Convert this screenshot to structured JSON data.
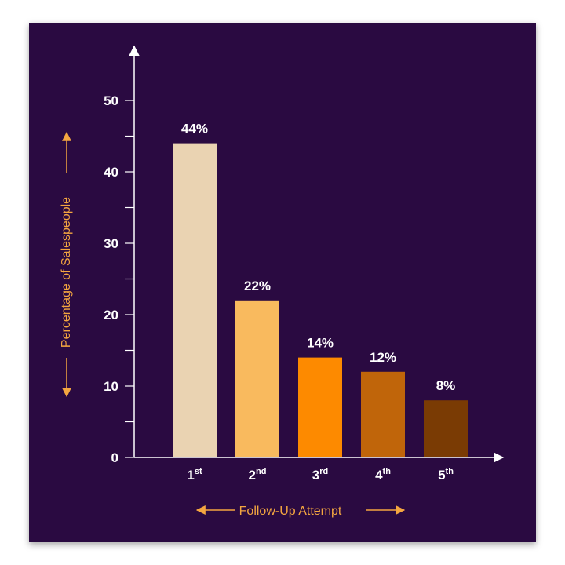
{
  "chart_data": {
    "type": "bar",
    "categories": [
      "1st",
      "2nd",
      "3rd",
      "4th",
      "5th"
    ],
    "category_parts": [
      {
        "base": "1",
        "sup": "st"
      },
      {
        "base": "2",
        "sup": "nd"
      },
      {
        "base": "3",
        "sup": "rd"
      },
      {
        "base": "4",
        "sup": "th"
      },
      {
        "base": "5",
        "sup": "th"
      }
    ],
    "values": [
      44,
      22,
      14,
      12,
      8
    ],
    "data_labels": [
      "44%",
      "22%",
      "14%",
      "12%",
      "8%"
    ],
    "bar_colors": [
      "#ead3b2",
      "#f9ba5e",
      "#fd8a00",
      "#c0650a",
      "#7a3b04"
    ],
    "xlabel": "Follow-Up Attempt",
    "ylabel": "Percentage of Salespeople",
    "ylim": [
      0,
      55
    ],
    "yticks": [
      0,
      10,
      20,
      30,
      40,
      50
    ],
    "minor_tick_step": 5,
    "grid": false,
    "colors": {
      "background": "#2a0a41",
      "axis": "#ffffff",
      "axis_title": "#f4a640",
      "text": "#ffffff"
    }
  }
}
